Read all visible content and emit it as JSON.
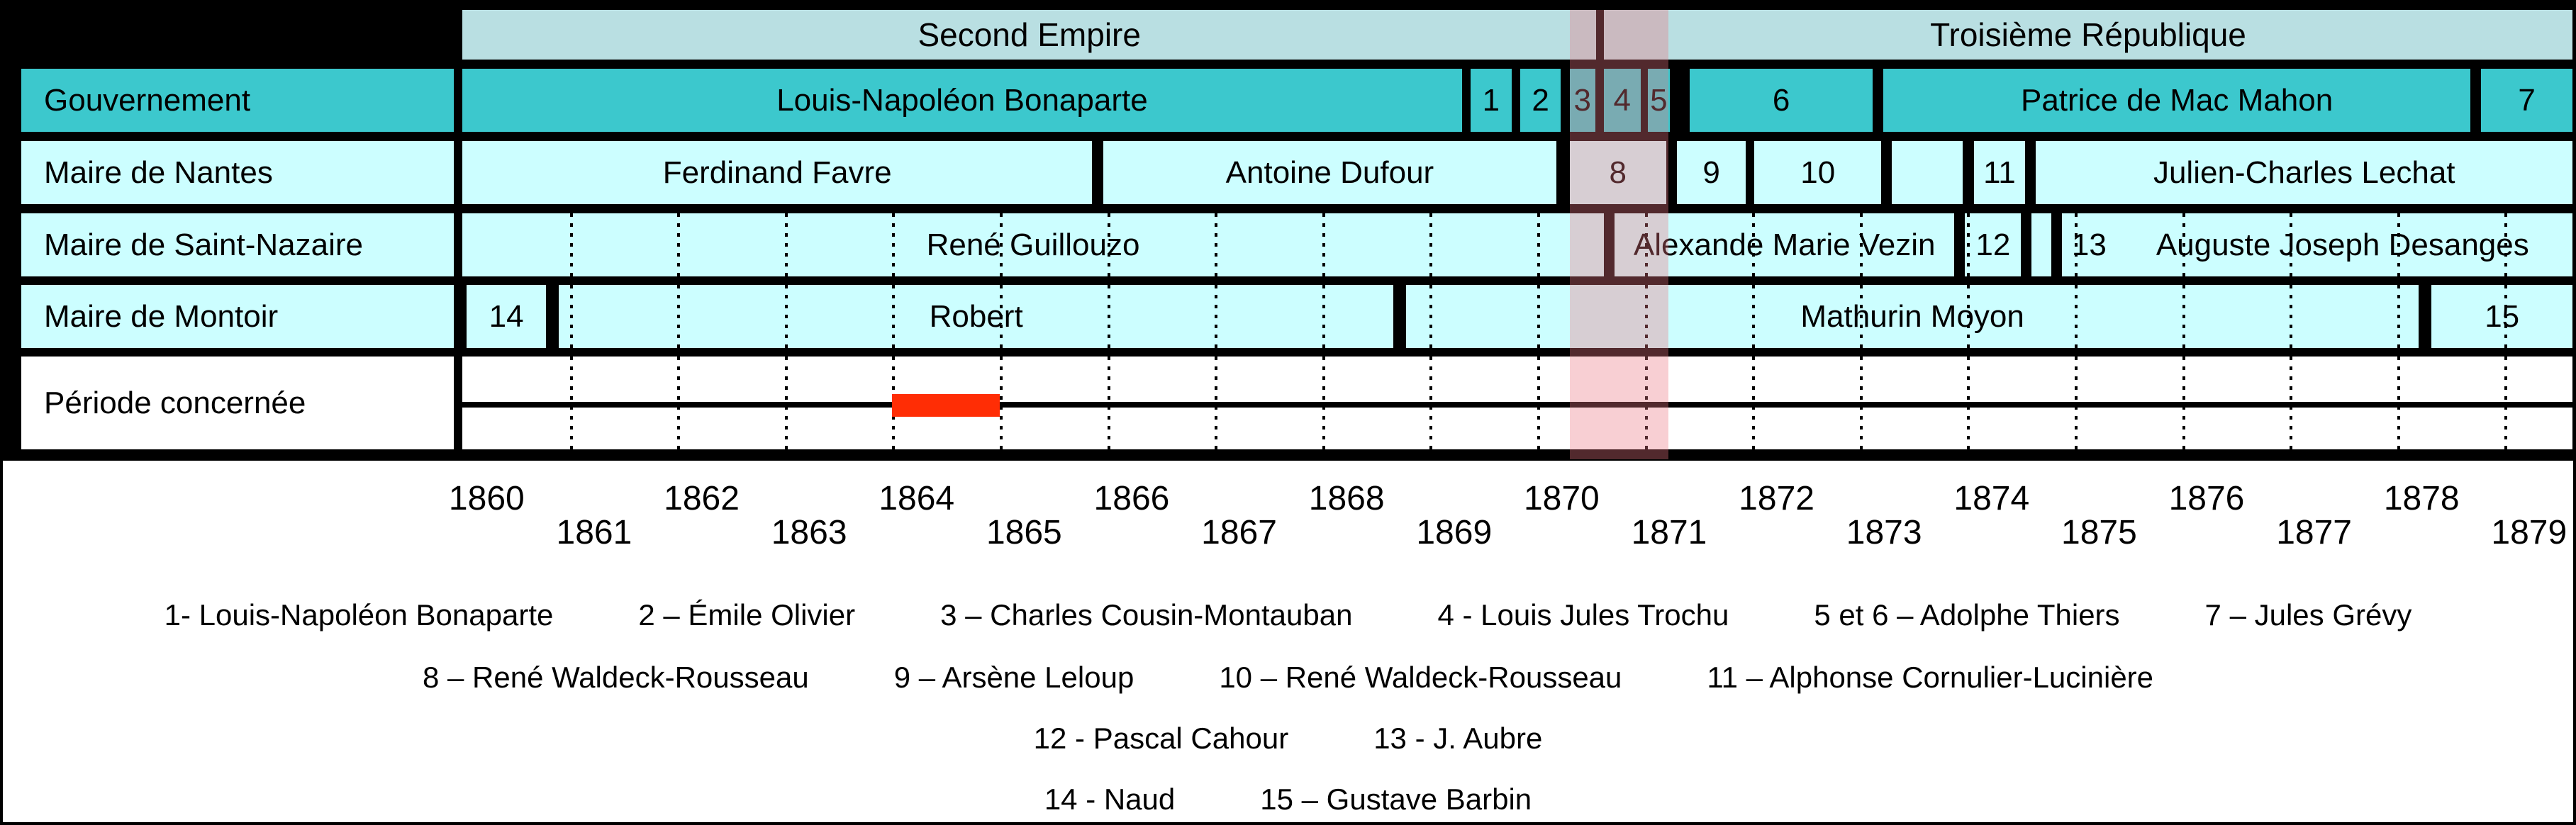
{
  "colors": {
    "teal": "#3CC8CD",
    "cyan": "#CCFEFF",
    "era_pale": "#B9DFE2",
    "war_overlay": "rgba(235,118,130,0.35)",
    "red_mark": "#FF2D05",
    "border": "#000000",
    "background": "#FFFFFF"
  },
  "chart_data": {
    "type": "table",
    "title": "",
    "time_axis": {
      "start": 1860,
      "end": 1879.63,
      "tick_years_top": [
        1860,
        1862,
        1864,
        1866,
        1868,
        1870,
        1872,
        1874,
        1876,
        1878
      ],
      "tick_years_bottom": [
        1861,
        1863,
        1865,
        1867,
        1869,
        1871,
        1873,
        1875,
        1877,
        1879
      ],
      "label_offset_years": 0.2
    },
    "era_row": {
      "segments": [
        {
          "label": "Second Empire",
          "start": 1860,
          "end": 1870.55
        },
        {
          "label": "Troisième République",
          "start": 1870.62,
          "end": 1879.63
        }
      ]
    },
    "rows": [
      {
        "label": "Gouvernement",
        "style": "teal",
        "grid": false,
        "segments": [
          {
            "label": "Louis-Napoléon Bonaparte",
            "start": 1860,
            "end": 1869.3
          },
          {
            "label": "1",
            "start": 1869.38,
            "end": 1869.76
          },
          {
            "label": "2",
            "start": 1869.84,
            "end": 1870.22
          },
          {
            "label": "3",
            "start": 1870.3,
            "end": 1870.54
          },
          {
            "label": "4",
            "start": 1870.62,
            "end": 1870.96
          },
          {
            "label": "5",
            "start": 1871.03,
            "end": 1871.23
          },
          {
            "label": "6",
            "start": 1871.42,
            "end": 1873.12
          },
          {
            "label": "Patrice de Mac Mahon",
            "start": 1873.22,
            "end": 1878.68
          },
          {
            "label": "7",
            "start": 1878.78,
            "end": 1879.63
          }
        ]
      },
      {
        "label": "Maire de Nantes",
        "style": "cyan",
        "grid": false,
        "segments": [
          {
            "label": "Ferdinand Favre",
            "start": 1860,
            "end": 1865.86
          },
          {
            "label": "Antoine Dufour",
            "start": 1865.96,
            "end": 1870.18
          },
          {
            "label": "8",
            "start": 1870.3,
            "end": 1871.2
          },
          {
            "label": "9",
            "start": 1871.3,
            "end": 1871.94
          },
          {
            "label": "10",
            "start": 1872.02,
            "end": 1873.2
          },
          {
            "label": "",
            "start": 1873.3,
            "end": 1873.96
          },
          {
            "label": "11",
            "start": 1874.06,
            "end": 1874.54
          },
          {
            "label": "Julien-Charles Lechat",
            "start": 1874.64,
            "end": 1879.63
          }
        ]
      },
      {
        "label": "Maire de Saint-Nazaire",
        "style": "cyan",
        "grid": true,
        "segments": [
          {
            "label": "René Guillouzo",
            "start": 1860,
            "end": 1870.62
          },
          {
            "label": "Alexande Marie Vezin",
            "start": 1870.72,
            "end": 1873.88
          },
          {
            "label": "12",
            "start": 1873.98,
            "end": 1874.5
          },
          {
            "label": "",
            "start": 1874.6,
            "end": 1874.78
          },
          {
            "label": "13",
            "label2": "Auguste Joseph Desanges",
            "align": "left",
            "start": 1874.88,
            "end": 1879.63
          }
        ]
      },
      {
        "label": "Maire de Montoir",
        "style": "cyan",
        "grid": true,
        "segments": [
          {
            "label": "14",
            "start": 1860.04,
            "end": 1860.78
          },
          {
            "label": "Robert",
            "start": 1860.9,
            "end": 1868.66
          },
          {
            "label": "Mathurin Moyon",
            "start": 1868.78,
            "end": 1878.2
          },
          {
            "label": "15",
            "start": 1878.32,
            "end": 1879.63
          }
        ]
      }
    ],
    "periode_row": {
      "label": "Période concernée",
      "highlight": {
        "start": 1864,
        "end": 1865
      }
    },
    "war_band": {
      "start": 1870.3,
      "end": 1871.22
    },
    "gridline_years": [
      1861,
      1862,
      1863,
      1864,
      1865,
      1866,
      1867,
      1868,
      1869,
      1870,
      1871,
      1872,
      1873,
      1874,
      1875,
      1876,
      1877,
      1878,
      1879
    ]
  },
  "legend": {
    "lines": [
      [
        "1- Louis-Napoléon Bonaparte",
        "2 – Émile Olivier",
        "3 – Charles Cousin-Montauban",
        "4 - Louis Jules Trochu",
        "5 et 6 – Adolphe Thiers",
        "7 – Jules Grévy"
      ],
      [
        "8 – René Waldeck-Rousseau",
        "9 – Arsène Leloup",
        "10 – René Waldeck-Rousseau",
        "11 – Alphonse Cornulier-Lucinière"
      ],
      [
        "12 - Pascal Cahour",
        "13 - J. Aubre"
      ],
      [
        "14 - Naud",
        "15 – Gustave Barbin"
      ]
    ]
  }
}
